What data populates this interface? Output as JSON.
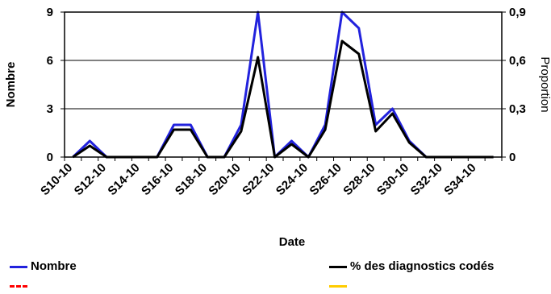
{
  "chart_data": {
    "type": "line",
    "xlabel": "Date",
    "ylabel_left": "Nombre",
    "ylabel_right": "Proportion",
    "ylim_left": [
      0,
      9
    ],
    "ylim_right": [
      0,
      0.9
    ],
    "yticks_left": [
      "0",
      "3",
      "6",
      "9"
    ],
    "yticks_right": [
      "0",
      "0,3",
      "0,6",
      "0,9"
    ],
    "grid": true,
    "legend_position": "bottom",
    "x": [
      "S10-10",
      "S11-10",
      "S12-10",
      "S13-10",
      "S14-10",
      "S15-10",
      "S16-10",
      "S17-10",
      "S18-10",
      "S19-10",
      "S20-10",
      "S21-10",
      "S22-10",
      "S23-10",
      "S24-10",
      "S25-10",
      "S26-10",
      "S27-10",
      "S28-10",
      "S29-10",
      "S30-10",
      "S31-10",
      "S32-10",
      "S33-10",
      "S34-10",
      "S35-10"
    ],
    "xtick_labels": [
      "S10-10",
      "S12-10",
      "S14-10",
      "S16-10",
      "S18-10",
      "S20-10",
      "S22-10",
      "S24-10",
      "S26-10",
      "S28-10",
      "S30-10",
      "S32-10",
      "S34-10"
    ],
    "series": [
      {
        "name": "Nombre",
        "axis": "left",
        "color": "#2222dd",
        "values": [
          0,
          1,
          0,
          0,
          0,
          0,
          2,
          2,
          0,
          0,
          2,
          9,
          0,
          1,
          0,
          2,
          9,
          8,
          2,
          3,
          1,
          0,
          0,
          0,
          0,
          0
        ]
      },
      {
        "name": "% des diagnostics codés",
        "axis": "right",
        "color": "#000000",
        "values": [
          0,
          0.07,
          0,
          0,
          0,
          0,
          0.17,
          0.17,
          0,
          0,
          0.16,
          0.62,
          0,
          0.08,
          0,
          0.17,
          0.72,
          0.64,
          0.16,
          0.27,
          0.09,
          0,
          0,
          0,
          0,
          0
        ]
      }
    ],
    "extra_legend": [
      {
        "color": "#ff0000",
        "style": "dashed"
      },
      {
        "color": "#ffcc00",
        "style": "solid"
      }
    ]
  }
}
